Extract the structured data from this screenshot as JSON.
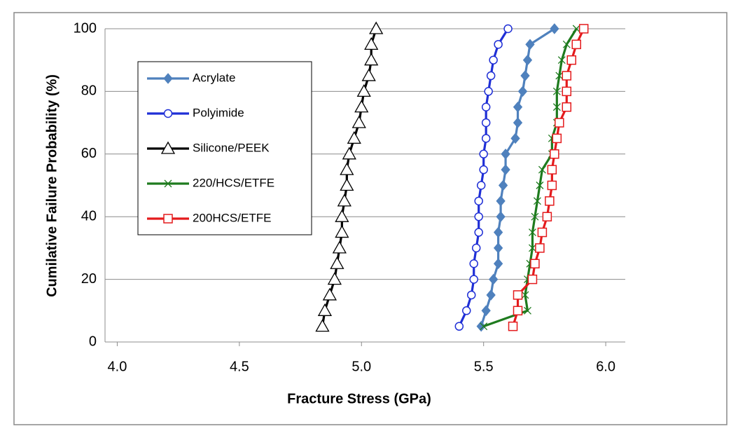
{
  "chart_data": {
    "type": "line",
    "x_label": "Fracture Stress (GPa)",
    "y_label": "Cumilative Failure Probability (%)",
    "xlim": [
      3.95,
      6.08
    ],
    "ylim": [
      0,
      100
    ],
    "xticks": [
      {
        "value": 4,
        "label": "4.0"
      },
      {
        "value": 4.5,
        "label": "4.5"
      },
      {
        "value": 5,
        "label": "5.0"
      },
      {
        "value": 5.5,
        "label": "5.5"
      },
      {
        "value": 6,
        "label": "6.0"
      }
    ],
    "yticks": [
      0,
      20,
      40,
      60,
      80,
      100
    ],
    "grid": true,
    "legend": "upper left",
    "series": [
      {
        "name": "Acrylate",
        "color": "#4f81bd",
        "marker": "diamond",
        "x": [
          5.49,
          5.51,
          5.53,
          5.54,
          5.56,
          5.56,
          5.56,
          5.57,
          5.57,
          5.58,
          5.59,
          5.59,
          5.63,
          5.64,
          5.64,
          5.66,
          5.67,
          5.68,
          5.69,
          5.79
        ],
        "values": [
          5,
          10,
          15,
          20,
          25,
          30,
          35,
          40,
          45,
          50,
          55,
          60,
          65,
          70,
          75,
          80,
          85,
          90,
          95,
          100
        ]
      },
      {
        "name": "Polyimide",
        "color": "#1f2fd6",
        "marker": "circle",
        "x": [
          5.4,
          5.43,
          5.45,
          5.46,
          5.46,
          5.47,
          5.48,
          5.48,
          5.48,
          5.49,
          5.5,
          5.5,
          5.51,
          5.51,
          5.51,
          5.52,
          5.53,
          5.54,
          5.56,
          5.6
        ],
        "values": [
          5,
          10,
          15,
          20,
          25,
          30,
          35,
          40,
          45,
          50,
          55,
          60,
          65,
          70,
          75,
          80,
          85,
          90,
          95,
          100
        ]
      },
      {
        "name": "Silicone/PEEK",
        "color": "#000000",
        "marker": "triangle",
        "x": [
          4.84,
          4.85,
          4.87,
          4.89,
          4.9,
          4.91,
          4.92,
          4.92,
          4.93,
          4.94,
          4.94,
          4.95,
          4.97,
          4.99,
          5.0,
          5.01,
          5.03,
          5.04,
          5.04,
          5.06
        ],
        "values": [
          5,
          10,
          15,
          20,
          25,
          30,
          35,
          40,
          45,
          50,
          55,
          60,
          65,
          70,
          75,
          80,
          85,
          90,
          95,
          100
        ]
      },
      {
        "name": "220/HCS/ETFE",
        "color": "#1e7b1e",
        "marker": "x",
        "x": [
          5.5,
          5.68,
          5.67,
          5.68,
          5.69,
          5.7,
          5.7,
          5.71,
          5.72,
          5.73,
          5.74,
          5.78,
          5.78,
          5.8,
          5.8,
          5.8,
          5.81,
          5.82,
          5.84,
          5.88
        ],
        "values": [
          5,
          10,
          15,
          20,
          25,
          30,
          35,
          40,
          45,
          50,
          55,
          60,
          65,
          70,
          75,
          80,
          85,
          90,
          95,
          100
        ]
      },
      {
        "name": "200HCS/ETFE",
        "color": "#e41a1c",
        "marker": "square",
        "x": [
          5.62,
          5.64,
          5.64,
          5.7,
          5.71,
          5.73,
          5.74,
          5.76,
          5.77,
          5.78,
          5.78,
          5.79,
          5.8,
          5.81,
          5.84,
          5.84,
          5.84,
          5.86,
          5.88,
          5.91
        ],
        "values": [
          5,
          10,
          15,
          20,
          25,
          30,
          35,
          40,
          45,
          50,
          55,
          60,
          65,
          70,
          75,
          80,
          85,
          90,
          95,
          100
        ]
      }
    ]
  }
}
